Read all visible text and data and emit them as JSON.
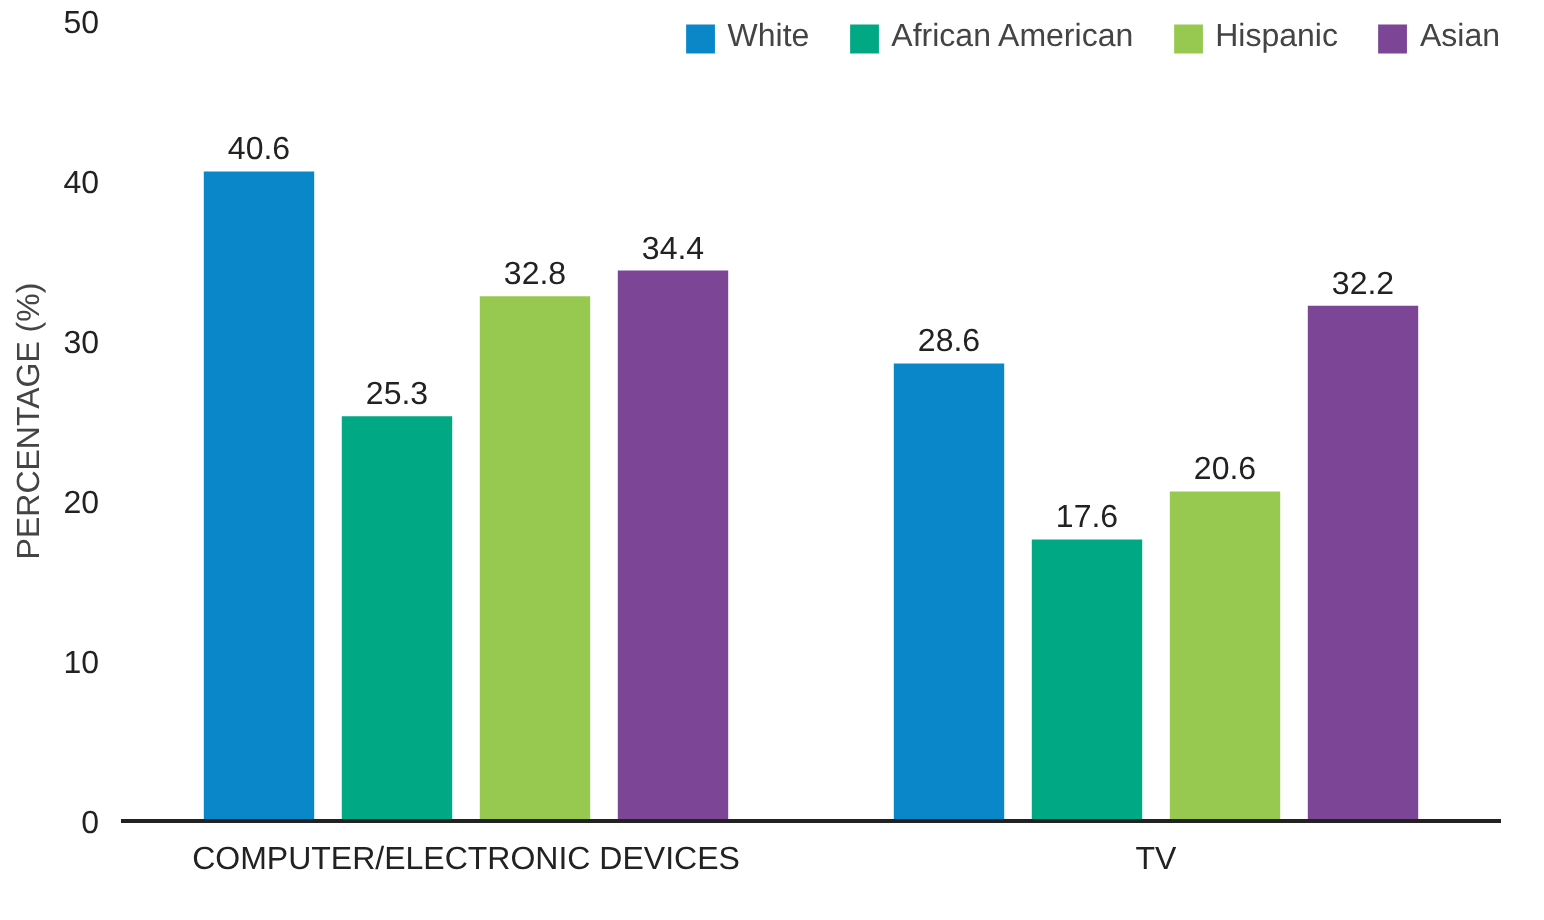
{
  "chart_data": {
    "type": "bar",
    "ylabel": "PERCENTAGE (%)",
    "categories": [
      "COMPUTER/ELECTRONIC DEVICES",
      "TV"
    ],
    "series": [
      {
        "name": "White",
        "color": "#0a87c9",
        "values": [
          40.6,
          28.6
        ]
      },
      {
        "name": "African American",
        "color": "#00a984",
        "values": [
          25.3,
          17.6
        ]
      },
      {
        "name": "Hispanic",
        "color": "#97c950",
        "values": [
          32.8,
          20.6
        ]
      },
      {
        "name": "Asian",
        "color": "#7d4595",
        "values": [
          34.4,
          32.2
        ]
      }
    ],
    "ylim": [
      0,
      50
    ],
    "yticks": [
      0,
      10,
      20,
      30,
      40,
      50
    ],
    "grid": false,
    "legend": "top",
    "data_labels": true
  }
}
